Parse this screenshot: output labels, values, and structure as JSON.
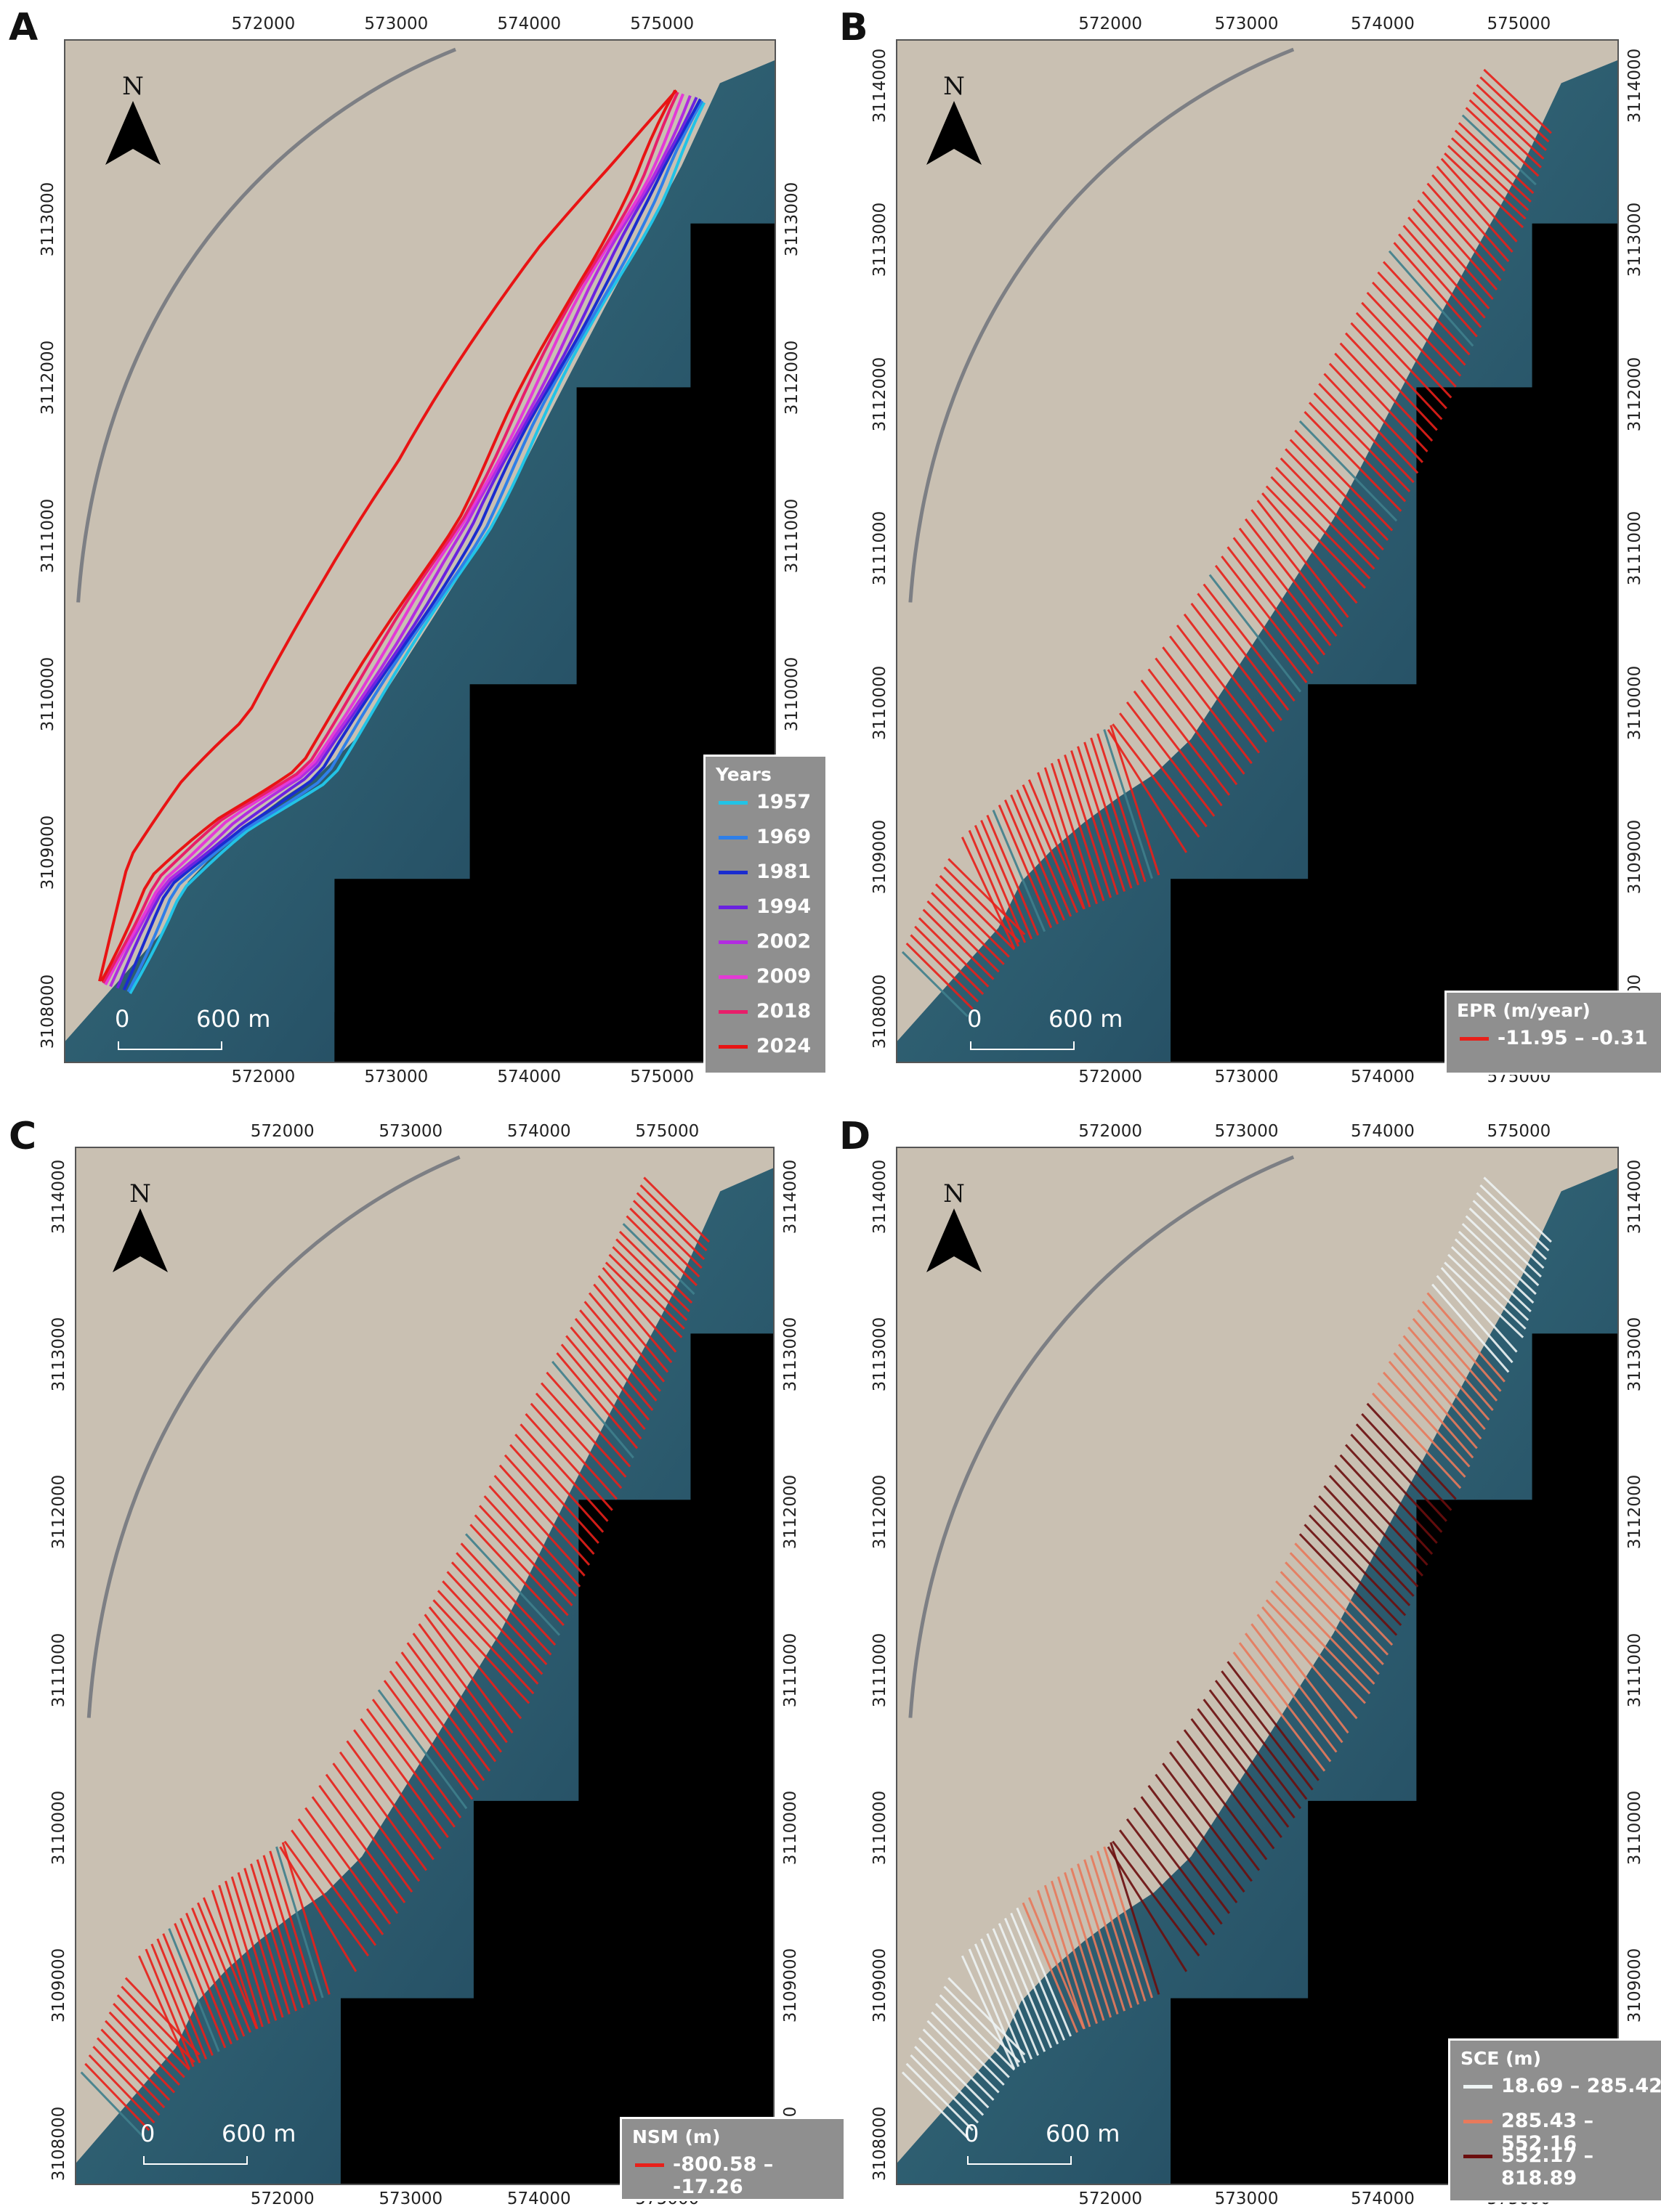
{
  "figure": {
    "panels": [
      {
        "id": "A",
        "label": "A",
        "x_ticks": [
          "572000",
          "573000",
          "574000",
          "575000"
        ],
        "y_ticks": [
          "3108000",
          "3109000",
          "3110000",
          "3111000",
          "3112000",
          "3113000"
        ],
        "north_label": "N",
        "scale_zero": "0",
        "scale_label": "600 m",
        "legend": {
          "title": "Years",
          "items": [
            {
              "label": "1957",
              "color": "#22c3e6"
            },
            {
              "label": "1969",
              "color": "#2f7fe8"
            },
            {
              "label": "1981",
              "color": "#1a2ccf"
            },
            {
              "label": "1994",
              "color": "#6a22e0"
            },
            {
              "label": "2002",
              "color": "#b22ce0"
            },
            {
              "label": "2009",
              "color": "#e43ad6"
            },
            {
              "label": "2018",
              "color": "#e81e6a"
            },
            {
              "label": "2024",
              "color": "#e81414"
            }
          ]
        }
      },
      {
        "id": "B",
        "label": "B",
        "x_ticks": [
          "572000",
          "573000",
          "574000",
          "575000"
        ],
        "y_ticks": [
          "3108000",
          "3109000",
          "3110000",
          "3111000",
          "3112000",
          "3113000",
          "3114000"
        ],
        "north_label": "N",
        "scale_zero": "0",
        "scale_label": "600 m",
        "legend": {
          "title": "EPR (m/year)",
          "items": [
            {
              "label": "-11.95 – -0.31",
              "color": "#e8201a"
            }
          ]
        }
      },
      {
        "id": "C",
        "label": "C",
        "x_ticks": [
          "572000",
          "573000",
          "574000",
          "575000"
        ],
        "y_ticks": [
          "3108000",
          "3109000",
          "3110000",
          "3111000",
          "3112000",
          "3113000",
          "3114000"
        ],
        "north_label": "N",
        "scale_zero": "0",
        "scale_label": "600 m",
        "legend": {
          "title": "NSM (m)",
          "items": [
            {
              "label": "-800.58 – -17.26",
              "color": "#e8201a"
            }
          ]
        }
      },
      {
        "id": "D",
        "label": "D",
        "x_ticks": [
          "572000",
          "573000",
          "574000",
          "575000"
        ],
        "y_ticks": [
          "3108000",
          "3109000",
          "3110000",
          "3111000",
          "3112000",
          "3113000",
          "3114000"
        ],
        "north_label": "N",
        "scale_zero": "0",
        "scale_label": "600 m",
        "legend": {
          "title": "SCE (m)",
          "items": [
            {
              "label": "18.69 – 285.42",
              "color": "#eef4f4"
            },
            {
              "label": "285.43 – 552.16",
              "color": "#e87a5c"
            },
            {
              "label": "552.17 – 818.89",
              "color": "#6b0e0e"
            }
          ]
        }
      }
    ],
    "colors": {
      "land": "#c9c0b2",
      "sea_shallow": "#3f7f8c",
      "sea_deep": "#1c3d55",
      "nodata": "#000000",
      "transect_red": "#e8201a",
      "transect_blue": "#3f7f8c",
      "sce_low": "#eef4f4",
      "sce_mid": "#e87a5c",
      "sce_high": "#6b0e0e"
    }
  }
}
